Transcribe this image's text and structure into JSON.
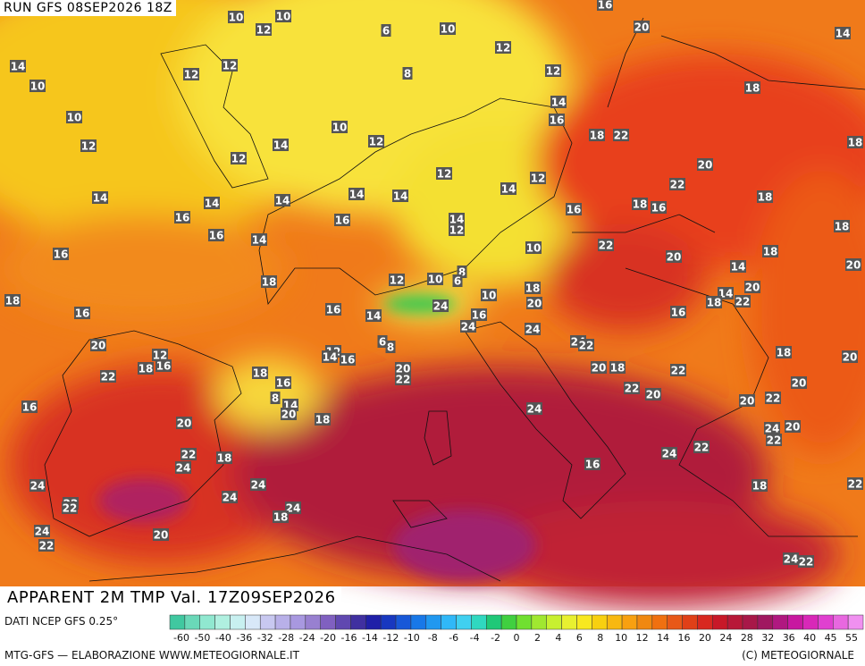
{
  "header": {
    "run": "RUN GFS 08SEP2026 18Z",
    "title": "APPARENT 2M TMP Val. 17Z09SEP2026"
  },
  "footer": {
    "source": "DATI NCEP GFS 0.25°",
    "credit": "MTG-GFS — ELABORAZIONE WWW.METEOGIORNALE.IT",
    "copyright": "(C) METEOGIORNALE"
  },
  "legend": {
    "ticks": [
      -60,
      -50,
      -40,
      -36,
      -32,
      -28,
      -24,
      -20,
      -16,
      -14,
      -12,
      -10,
      -8,
      -6,
      -4,
      -2,
      0,
      2,
      4,
      6,
      8,
      10,
      12,
      14,
      16,
      20,
      24,
      28,
      32,
      36,
      40,
      45,
      55
    ]
  },
  "labels": [
    10,
    10,
    12,
    6,
    10,
    12,
    14,
    12,
    12,
    8,
    12,
    10,
    16,
    20,
    14,
    18,
    14,
    16,
    10,
    10,
    12,
    18,
    22,
    12,
    14,
    12,
    20,
    18,
    12,
    12,
    14,
    14,
    14,
    14,
    14,
    14,
    22,
    18,
    16,
    16,
    14,
    12,
    16,
    18,
    16,
    18,
    16,
    14,
    22,
    10,
    16,
    18,
    20,
    20,
    14,
    18,
    12,
    10,
    8,
    6,
    18,
    10,
    20,
    14,
    18,
    20,
    18,
    22,
    24,
    16,
    16,
    16,
    16,
    14,
    24,
    24,
    20,
    6,
    8,
    24,
    22,
    12,
    14,
    16,
    12,
    16,
    18,
    18,
    20,
    22,
    18,
    20,
    22,
    20,
    18,
    22,
    16,
    20,
    22,
    20,
    8,
    14,
    20,
    20,
    22,
    16,
    24,
    18,
    20,
    20,
    24,
    22,
    22,
    22,
    18,
    24,
    24,
    16,
    24,
    24,
    18,
    22,
    24,
    22,
    22,
    24,
    18,
    24,
    20,
    22,
    24,
    22
  ]
}
